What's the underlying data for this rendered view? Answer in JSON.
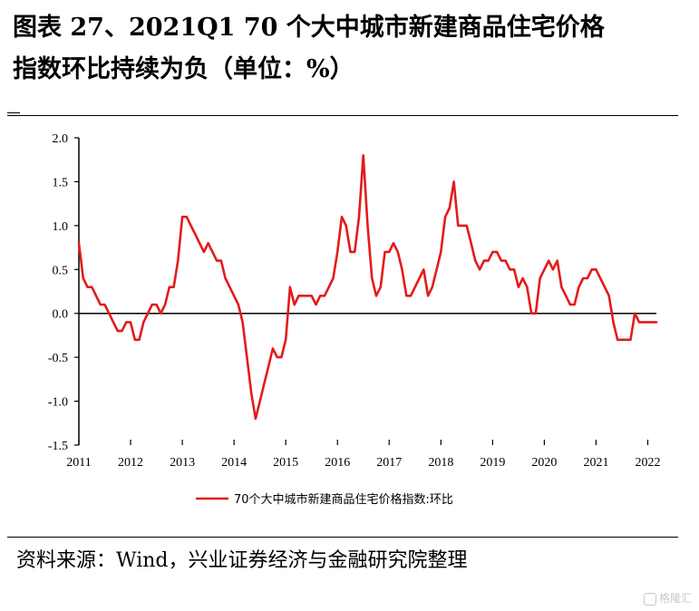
{
  "title_lines": [
    "图表 27、2021Q1 70 个大中城市新建商品住宅价格",
    "指数环比持续为负（单位：%）"
  ],
  "source": "资料来源：Wind，兴业证券经济与金融研究院整理",
  "watermark": "格隆汇",
  "colors": {
    "series": "#e31b1b",
    "axis": "#000000"
  },
  "chart_data": {
    "type": "line",
    "title": "",
    "xlabel": "",
    "ylabel": "",
    "ylim": [
      -1.5,
      2.0
    ],
    "yticks": [
      -1.5,
      -1.0,
      -0.5,
      0.0,
      0.5,
      1.0,
      1.5,
      2.0
    ],
    "ytick_labels": [
      "-1.5",
      "-1.0",
      "-0.5",
      "0.0",
      "0.5",
      "1.0",
      "1.5",
      "2.0"
    ],
    "xlim": [
      "2011-01",
      "2022-03"
    ],
    "xtick_labels": [
      "2011",
      "2012",
      "2013",
      "2014",
      "2015",
      "2016",
      "2017",
      "2018",
      "2019",
      "2020",
      "2021",
      "2022"
    ],
    "grid": false,
    "legend_position": "bottom-center",
    "series": [
      {
        "name": "70个大中城市新建商品住宅价格指数:环比",
        "x": [
          "2011-01",
          "2011-02",
          "2011-03",
          "2011-04",
          "2011-05",
          "2011-06",
          "2011-07",
          "2011-08",
          "2011-09",
          "2011-10",
          "2011-11",
          "2011-12",
          "2012-01",
          "2012-02",
          "2012-03",
          "2012-04",
          "2012-05",
          "2012-06",
          "2012-07",
          "2012-08",
          "2012-09",
          "2012-10",
          "2012-11",
          "2012-12",
          "2013-01",
          "2013-02",
          "2013-03",
          "2013-04",
          "2013-05",
          "2013-06",
          "2013-07",
          "2013-08",
          "2013-09",
          "2013-10",
          "2013-11",
          "2013-12",
          "2014-01",
          "2014-02",
          "2014-03",
          "2014-04",
          "2014-05",
          "2014-06",
          "2014-07",
          "2014-08",
          "2014-09",
          "2014-10",
          "2014-11",
          "2014-12",
          "2015-01",
          "2015-02",
          "2015-03",
          "2015-04",
          "2015-05",
          "2015-06",
          "2015-07",
          "2015-08",
          "2015-09",
          "2015-10",
          "2015-11",
          "2015-12",
          "2016-01",
          "2016-02",
          "2016-03",
          "2016-04",
          "2016-05",
          "2016-06",
          "2016-07",
          "2016-08",
          "2016-09",
          "2016-10",
          "2016-11",
          "2016-12",
          "2017-01",
          "2017-02",
          "2017-03",
          "2017-04",
          "2017-05",
          "2017-06",
          "2017-07",
          "2017-08",
          "2017-09",
          "2017-10",
          "2017-11",
          "2017-12",
          "2018-01",
          "2018-02",
          "2018-03",
          "2018-04",
          "2018-05",
          "2018-06",
          "2018-07",
          "2018-08",
          "2018-09",
          "2018-10",
          "2018-11",
          "2018-12",
          "2019-01",
          "2019-02",
          "2019-03",
          "2019-04",
          "2019-05",
          "2019-06",
          "2019-07",
          "2019-08",
          "2019-09",
          "2019-10",
          "2019-11",
          "2019-12",
          "2020-01",
          "2020-02",
          "2020-03",
          "2020-04",
          "2020-05",
          "2020-06",
          "2020-07",
          "2020-08",
          "2020-09",
          "2020-10",
          "2020-11",
          "2020-12",
          "2021-01",
          "2021-02",
          "2021-03",
          "2021-04",
          "2021-05",
          "2021-06",
          "2021-07",
          "2021-08",
          "2021-09",
          "2021-10",
          "2021-11",
          "2021-12",
          "2022-01",
          "2022-02",
          "2022-03"
        ],
        "values": [
          0.8,
          0.4,
          0.3,
          0.3,
          0.2,
          0.1,
          0.1,
          0.0,
          -0.1,
          -0.2,
          -0.2,
          -0.1,
          -0.1,
          -0.3,
          -0.3,
          -0.1,
          0.0,
          0.1,
          0.1,
          0.0,
          0.1,
          0.3,
          0.3,
          0.6,
          1.1,
          1.1,
          1.0,
          0.9,
          0.8,
          0.7,
          0.8,
          0.7,
          0.6,
          0.6,
          0.4,
          0.3,
          0.2,
          0.1,
          -0.1,
          -0.5,
          -0.9,
          -1.2,
          -1.0,
          -0.8,
          -0.6,
          -0.4,
          -0.5,
          -0.5,
          -0.3,
          0.3,
          0.1,
          0.2,
          0.2,
          0.2,
          0.2,
          0.1,
          0.2,
          0.2,
          0.3,
          0.4,
          0.7,
          1.1,
          1.0,
          0.7,
          0.7,
          1.1,
          1.8,
          1.0,
          0.4,
          0.2,
          0.3,
          0.7,
          0.7,
          0.8,
          0.7,
          0.5,
          0.2,
          0.2,
          0.3,
          0.4,
          0.5,
          0.2,
          0.3,
          0.5,
          0.7,
          1.1,
          1.2,
          1.5,
          1.0,
          1.0,
          1.0,
          0.8,
          0.6,
          0.5,
          0.6,
          0.6,
          0.7,
          0.7,
          0.6,
          0.6,
          0.5,
          0.5,
          0.3,
          0.4,
          0.3,
          0.0,
          0.0,
          0.4,
          0.5,
          0.6,
          0.5,
          0.6,
          0.3,
          0.2,
          0.1,
          0.1,
          0.3,
          0.4,
          0.4,
          0.5,
          0.5,
          0.4,
          0.3,
          0.2,
          -0.1,
          -0.3,
          -0.3,
          -0.3,
          -0.3,
          0.0,
          -0.1,
          -0.1,
          -0.1,
          -0.1,
          -0.1
        ]
      }
    ]
  }
}
